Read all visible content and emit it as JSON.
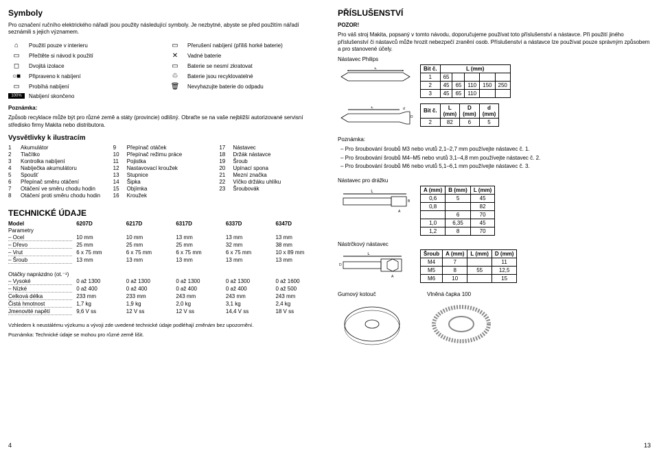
{
  "left": {
    "symbols_title": "Symboly",
    "symbols_intro": "Pro označení ručního elektrického nářadí jsou použity následující symboly. Je nezbytné, abyste se před použitím nářadí seznámili s jejich významem.",
    "sym": [
      {
        "l": "Použití pouze v interieru",
        "r": "Přerušení nabíjení (příliš horké baterie)"
      },
      {
        "l": "Přečtěte si návod k použití",
        "r": "Vadné baterie"
      },
      {
        "l": "Dvojitá izolace",
        "r": "Baterie se nesmí zkratovat"
      },
      {
        "l": "Připraveno k nabíjení",
        "r": "Baterie jsou recyklovatelné"
      },
      {
        "l": "Probíhá nabíjení",
        "r": "Nevyhazujte baterie do odpadu"
      },
      {
        "l": "Nabíjení skončeno",
        "r": ""
      }
    ],
    "poznamka_label": "Poznámka:",
    "poznamka_text": "Způsob recyklace může být pro různé země a státy (provincie) odlišný. Obraťte se na vaše nejbližší autorizované servisní středisko firmy Makita nebo distributora.",
    "ill_title": "Vysvětlivky k ilustracím",
    "ill": [
      [
        "1",
        "Akumulátor",
        "9",
        "Přepínač otáček",
        "17",
        "Nástavec"
      ],
      [
        "2",
        "Tlačítko",
        "10",
        "Přepínač režimu práce",
        "18",
        "Držák nástavce"
      ],
      [
        "3",
        "Kontrolka nabíjení",
        "11",
        "Pojistka",
        "19",
        "Šroub"
      ],
      [
        "4",
        "Nabíječka akumulátoru",
        "12",
        "Nastavovací kroužek",
        "20",
        "Upínací spona"
      ],
      [
        "5",
        "Spoušť",
        "13",
        "Stupnice",
        "21",
        "Mezní značka"
      ],
      [
        "6",
        "Přepínač směru otáčení",
        "14",
        "Šipka",
        "22",
        "Víčko držáku uhlíku"
      ],
      [
        "7",
        "Otáčení ve směru chodu hodin",
        "15",
        "Objímka",
        "23",
        "Šroubovák"
      ],
      [
        "8",
        "Otáčení proti směru chodu hodin",
        "16",
        "Kroužek",
        "",
        ""
      ]
    ],
    "tech_title": "TECHNICKÉ ÚDAJE",
    "tech_model_label": "Model",
    "tech_models": [
      "6207D",
      "6217D",
      "6317D",
      "6337D",
      "6347D"
    ],
    "tech_param_label": "Parametry",
    "tech_rows": [
      {
        "label": "– Ocel",
        "dotted": true,
        "vals": [
          "10 mm",
          "10 mm",
          "13 mm",
          "13 mm",
          "13 mm"
        ]
      },
      {
        "label": "– Dřevo",
        "dotted": true,
        "vals": [
          "25 mm",
          "25 mm",
          "25 mm",
          "32 mm",
          "38 mm"
        ]
      },
      {
        "label": "– Vrut",
        "dotted": true,
        "vals": [
          "6 x 75 mm",
          "6 x 75 mm",
          "6 x 75 mm",
          "6 x 75 mm",
          "10 x 89 mm"
        ]
      },
      {
        "label": "– Šroub",
        "dotted": true,
        "vals": [
          "13 mm",
          "13 mm",
          "13 mm",
          "13 mm",
          "13 mm"
        ]
      }
    ],
    "tech_sp": " ",
    "tech_ot_label": "Otáčky naprázdno (ot.⁻¹)",
    "tech_rows2": [
      {
        "label": "– Vysoké",
        "dotted": true,
        "vals": [
          "0 až 1300",
          "0 až 1300",
          "0 až 1300",
          "0 až 1300",
          "0 až 1600"
        ]
      },
      {
        "label": "– Nízké",
        "dotted": true,
        "vals": [
          "0 až 400",
          "0 až 400",
          "0 až 400",
          "0 až 400",
          "0 až 500"
        ]
      },
      {
        "label": "Celková délka",
        "dotted": true,
        "vals": [
          "233 mm",
          "233 mm",
          "243 mm",
          "243 mm",
          "243 mm"
        ]
      },
      {
        "label": "Čistá hmotnost",
        "dotted": true,
        "vals": [
          "1,7 kg",
          "1,9 kg",
          "2,0 kg",
          "3,1 kg",
          "2,4 kg"
        ]
      },
      {
        "label": "Jmenovité napětí",
        "dotted": true,
        "vals": [
          "9,6 V ss",
          "12 V ss",
          "12 V ss",
          "14,4 V ss",
          "18 V ss"
        ]
      }
    ],
    "tech_note1": "Vzhledem k neustálému výzkumu a vývoji zde uvedené technické údaje podléhají změnám bez upozornění.",
    "tech_note2": "Poznámka: Technické údaje se mohou pro různé země lišit.",
    "page": "4"
  },
  "right": {
    "pris_title": "PŘÍSLUŠENSTVÍ",
    "pozor": "POZOR!",
    "pris_text": "Pro váš stroj Makita, popsaný v tomto návodu, doporučujeme používat toto příslušenství a nástavce. Při použití jiného příslušenství či nástavců může hrozit nebezpečí zranění osob. Příslušenství a nástavce lze používat pouze správným způsobem a pro stanovené účely.",
    "philips_label": "Nástavec Philips",
    "bit_col": "Bit č.",
    "lmm": "L (mm)",
    "philips_rows": [
      [
        "1",
        "65",
        "",
        "",
        "",
        ""
      ],
      [
        "2",
        "45",
        "65",
        "110",
        "150",
        "250"
      ],
      [
        "3",
        "45",
        "65",
        "110",
        "",
        ""
      ]
    ],
    "lmm2": "L\n(mm)",
    "dmm": "D\n(mm)",
    "dmm2": "d\n(mm)",
    "flat_rows": [
      [
        "2",
        "82",
        "6",
        "5"
      ]
    ],
    "poznamka_label": "Poznámka:",
    "poznamka_lines": [
      "–   Pro šroubování šroubů M3 nebo vrutů 2,1–2,7 mm používejte nástavec č. 1.",
      "–   Pro šroubování šroubů M4–M5 nebo vrutů 3,1–4,8 mm používejte nástavec č. 2.",
      "–   Pro šroubování šroubů M6 nebo vrutů 5,1–6,1 mm používejte nástavec č. 3."
    ],
    "drazka_label": "Nástavec pro drážku",
    "drazka_head": [
      "A (mm)",
      "B (mm)",
      "L (mm)"
    ],
    "drazka_rows": [
      [
        "0,6",
        "5",
        "45"
      ],
      [
        "0,8",
        "",
        "82"
      ],
      [
        "",
        "6",
        "70"
      ],
      [
        "1,0",
        "6,35",
        "45"
      ],
      [
        "1,2",
        "8",
        "70"
      ]
    ],
    "nastrk_label": "Nástrčkový nástavec",
    "nastrk_head": [
      "Šroub",
      "A (mm)",
      "L (mm)",
      "D (mm)"
    ],
    "nastrk_rows": [
      [
        "M4",
        "7",
        "",
        "11"
      ],
      [
        "M5",
        "8",
        "55",
        "12,5"
      ],
      [
        "M6",
        "10",
        "",
        "15"
      ]
    ],
    "gum_label": "Gumový kotouč",
    "vln_label": "Vlněná čapka 100",
    "page": "13"
  }
}
